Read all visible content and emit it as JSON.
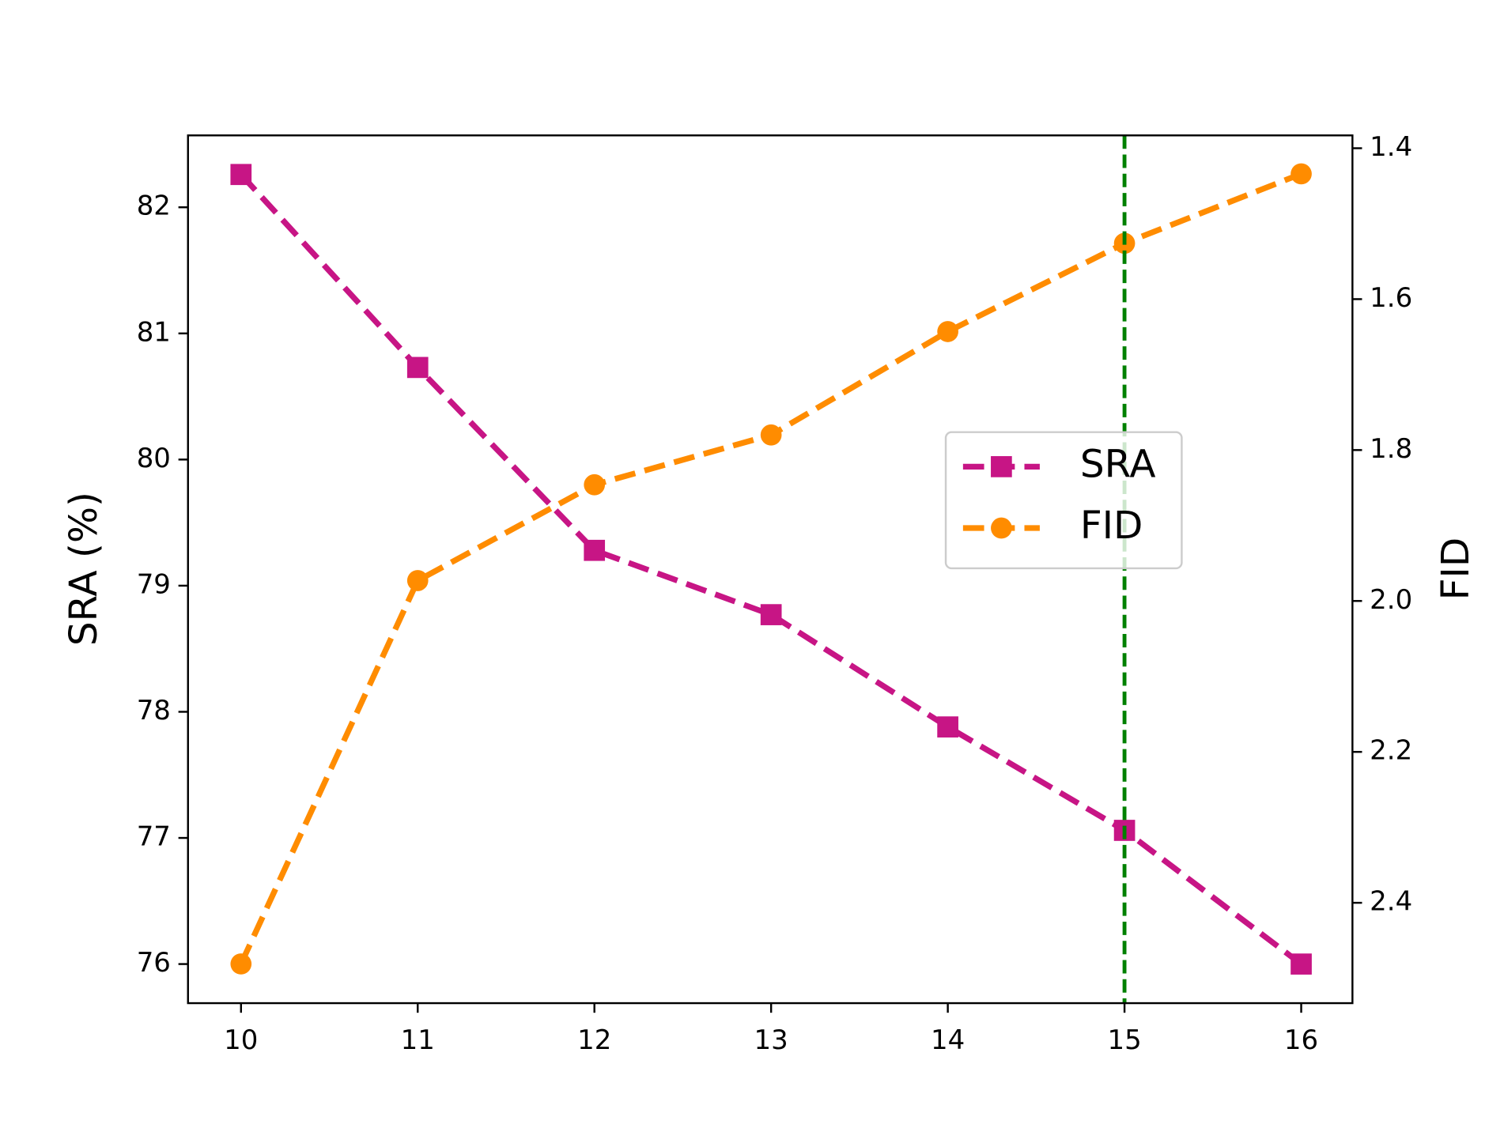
{
  "chart_data": {
    "type": "line",
    "x": [
      10,
      11,
      12,
      13,
      14,
      15,
      16
    ],
    "xlim": [
      9.7,
      16.29
    ],
    "xticks": [
      10,
      11,
      12,
      13,
      14,
      15,
      16
    ],
    "ylabel": "SRA (%)",
    "ylim": [
      75.69,
      82.57
    ],
    "yticks": [
      76,
      77,
      78,
      79,
      80,
      81,
      82
    ],
    "y2label": "FID",
    "y2lim": [
      2.533,
      1.383
    ],
    "y2ticks": [
      1.4,
      1.6,
      1.8,
      {
        "value": 2,
        "label": "2.0"
      },
      2.2,
      2.4
    ],
    "series": [
      {
        "name": "SRA",
        "color": "#c71585",
        "marker": "square",
        "values": [
          82.26,
          80.73,
          79.28,
          78.77,
          77.88,
          77.06,
          76.0
        ]
      },
      {
        "name": "FID",
        "color": "#ff8c00",
        "marker": "circle",
        "axis": "y2",
        "values": [
          2.481,
          1.973,
          1.846,
          1.78,
          1.643,
          1.526,
          1.434
        ]
      }
    ],
    "vline": 15,
    "vline_color": "#008000",
    "legend": "center right"
  }
}
